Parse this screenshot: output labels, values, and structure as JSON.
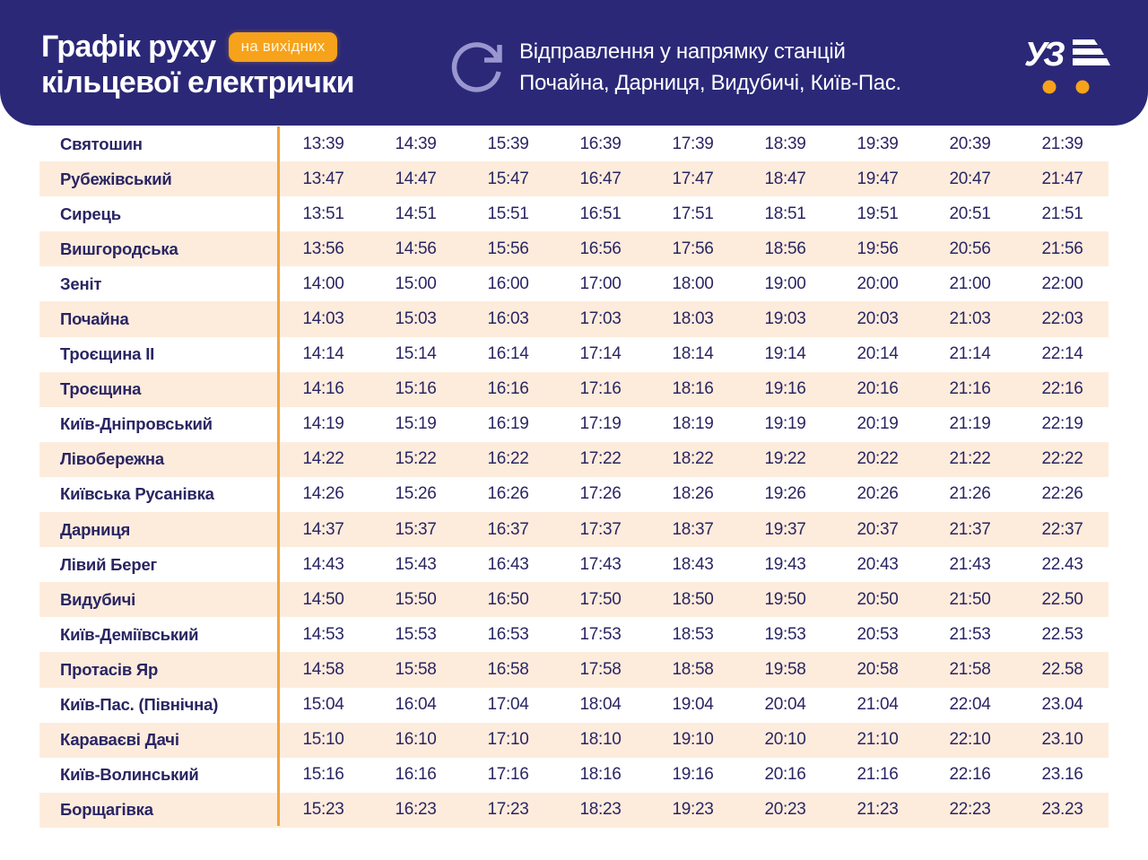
{
  "header": {
    "title_line1": "Графік руху",
    "title_line2": "кільцевої електрички",
    "badge": "на вихідних",
    "direction_line1": "Відправлення у напрямку станцій",
    "direction_line2": "Почайна, Дарниця, Видубичі, Київ-Пас.",
    "icons": {
      "direction": "refresh-icon",
      "logo": "uz-logo"
    },
    "colors": {
      "header_bg": "#2b2878",
      "accent": "#f7a21b",
      "row_alt": "#fdecdc",
      "divider": "#f2a33a",
      "text": "#2a2563"
    }
  },
  "schedule": {
    "rows": [
      {
        "station": "Святошин",
        "times": [
          "13:39",
          "14:39",
          "15:39",
          "16:39",
          "17:39",
          "18:39",
          "19:39",
          "20:39",
          "21:39"
        ]
      },
      {
        "station": "Рубежівський",
        "times": [
          "13:47",
          "14:47",
          "15:47",
          "16:47",
          "17:47",
          "18:47",
          "19:47",
          "20:47",
          "21:47"
        ]
      },
      {
        "station": "Сирець",
        "times": [
          "13:51",
          "14:51",
          "15:51",
          "16:51",
          "17:51",
          "18:51",
          "19:51",
          "20:51",
          "21:51"
        ]
      },
      {
        "station": "Вишгородська",
        "times": [
          "13:56",
          "14:56",
          "15:56",
          "16:56",
          "17:56",
          "18:56",
          "19:56",
          "20:56",
          "21:56"
        ]
      },
      {
        "station": "Зеніт",
        "times": [
          "14:00",
          "15:00",
          "16:00",
          "17:00",
          "18:00",
          "19:00",
          "20:00",
          "21:00",
          "22:00"
        ]
      },
      {
        "station": "Почайна",
        "times": [
          "14:03",
          "15:03",
          "16:03",
          "17:03",
          "18:03",
          "19:03",
          "20:03",
          "21:03",
          "22:03"
        ]
      },
      {
        "station": "Троєщина II",
        "times": [
          "14:14",
          "15:14",
          "16:14",
          "17:14",
          "18:14",
          "19:14",
          "20:14",
          "21:14",
          "22:14"
        ]
      },
      {
        "station": "Троєщина",
        "times": [
          "14:16",
          "15:16",
          "16:16",
          "17:16",
          "18:16",
          "19:16",
          "20:16",
          "21:16",
          "22:16"
        ]
      },
      {
        "station": "Київ-Дніпровський",
        "times": [
          "14:19",
          "15:19",
          "16:19",
          "17:19",
          "18:19",
          "19:19",
          "20:19",
          "21:19",
          "22:19"
        ]
      },
      {
        "station": "Лівобережна",
        "times": [
          "14:22",
          "15:22",
          "16:22",
          "17:22",
          "18:22",
          "19:22",
          "20:22",
          "21:22",
          "22:22"
        ]
      },
      {
        "station": "Київська Русанівка",
        "times": [
          "14:26",
          "15:26",
          "16:26",
          "17:26",
          "18:26",
          "19:26",
          "20:26",
          "21:26",
          "22:26"
        ]
      },
      {
        "station": "Дарниця",
        "times": [
          "14:37",
          "15:37",
          "16:37",
          "17:37",
          "18:37",
          "19:37",
          "20:37",
          "21:37",
          "22:37"
        ]
      },
      {
        "station": "Лівий Берег",
        "times": [
          "14:43",
          "15:43",
          "16:43",
          "17:43",
          "18:43",
          "19:43",
          "20:43",
          "21:43",
          "22.43"
        ]
      },
      {
        "station": "Видубичі",
        "times": [
          "14:50",
          "15:50",
          "16:50",
          "17:50",
          "18:50",
          "19:50",
          "20:50",
          "21:50",
          "22.50"
        ]
      },
      {
        "station": "Київ-Деміївський",
        "times": [
          "14:53",
          "15:53",
          "16:53",
          "17:53",
          "18:53",
          "19:53",
          "20:53",
          "21:53",
          "22.53"
        ]
      },
      {
        "station": "Протасів Яр",
        "times": [
          "14:58",
          "15:58",
          "16:58",
          "17:58",
          "18:58",
          "19:58",
          "20:58",
          "21:58",
          "22.58"
        ]
      },
      {
        "station": "Київ-Пас. (Північна)",
        "times": [
          "15:04",
          "16:04",
          "17:04",
          "18:04",
          "19:04",
          "20:04",
          "21:04",
          "22:04",
          "23.04"
        ]
      },
      {
        "station": "Караваєві Дачі",
        "times": [
          "15:10",
          "16:10",
          "17:10",
          "18:10",
          "19:10",
          "20:10",
          "21:10",
          "22:10",
          "23.10"
        ]
      },
      {
        "station": "Київ-Волинський",
        "times": [
          "15:16",
          "16:16",
          "17:16",
          "18:16",
          "19:16",
          "20:16",
          "21:16",
          "22:16",
          "23.16"
        ]
      },
      {
        "station": "Борщагівка",
        "times": [
          "15:23",
          "16:23",
          "17:23",
          "18:23",
          "19:23",
          "20:23",
          "21:23",
          "22:23",
          "23.23"
        ]
      }
    ]
  }
}
